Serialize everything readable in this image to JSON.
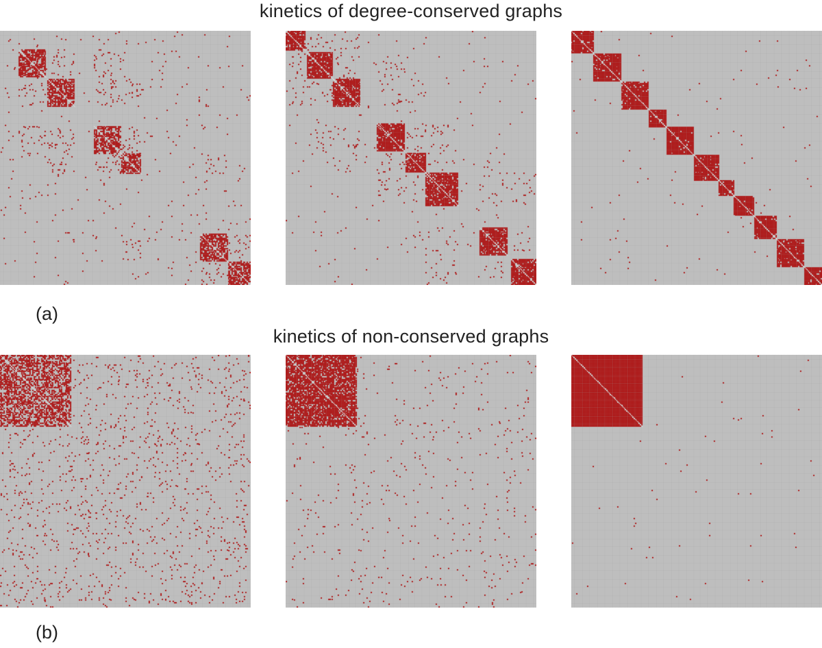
{
  "rows": [
    {
      "title": "kinetics of degree-conserved graphs",
      "label": "(a)"
    },
    {
      "title": "kinetics of non-conserved graphs",
      "label": "(b)"
    }
  ],
  "colors": {
    "background_cell": "#c6c6c6",
    "grid_line": "#9e9e9e",
    "edge_cell": "#b30000",
    "page": "#ffffff"
  },
  "chart_data": [
    {
      "type": "heatmap",
      "description_values": "adjacency matrix, 1 = edge, nodes ordered by community",
      "n_nodes": 200,
      "blocks": [
        [
          15,
          22
        ],
        [
          38,
          22
        ],
        [
          75,
          22
        ],
        [
          97,
          16
        ],
        [
          160,
          22
        ],
        [
          182,
          20
        ]
      ],
      "p_in": 0.7,
      "p_out": 0.06,
      "noise": 0.008
    },
    {
      "type": "heatmap",
      "n_nodes": 200,
      "blocks": [
        [
          0,
          16
        ],
        [
          17,
          22
        ],
        [
          38,
          22
        ],
        [
          73,
          22
        ],
        [
          96,
          20
        ],
        [
          112,
          26
        ],
        [
          155,
          22
        ],
        [
          180,
          20
        ]
      ],
      "p_in": 0.85,
      "p_out": 0.04,
      "noise": 0.005
    },
    {
      "type": "heatmap",
      "n_nodes": 200,
      "blocks": [
        [
          0,
          18
        ],
        [
          18,
          22
        ],
        [
          40,
          22
        ],
        [
          62,
          14
        ],
        [
          76,
          22
        ],
        [
          98,
          20
        ],
        [
          118,
          12
        ],
        [
          130,
          16
        ],
        [
          146,
          18
        ],
        [
          164,
          22
        ],
        [
          186,
          14
        ]
      ],
      "p_in": 0.93,
      "p_out": 0.0,
      "noise": 0.003
    },
    {
      "type": "heatmap",
      "n_nodes": 200,
      "blocks": [
        [
          0,
          57
        ]
      ],
      "p_in": 0.55,
      "p_out": 0.0,
      "noise": 0.035
    },
    {
      "type": "heatmap",
      "n_nodes": 200,
      "blocks": [
        [
          0,
          57
        ]
      ],
      "p_in": 0.82,
      "p_out": 0.0,
      "noise": 0.012
    },
    {
      "type": "heatmap",
      "n_nodes": 200,
      "blocks": [
        [
          0,
          57
        ]
      ],
      "p_in": 1.0,
      "p_out": 0.0,
      "noise": 0.0012
    }
  ]
}
